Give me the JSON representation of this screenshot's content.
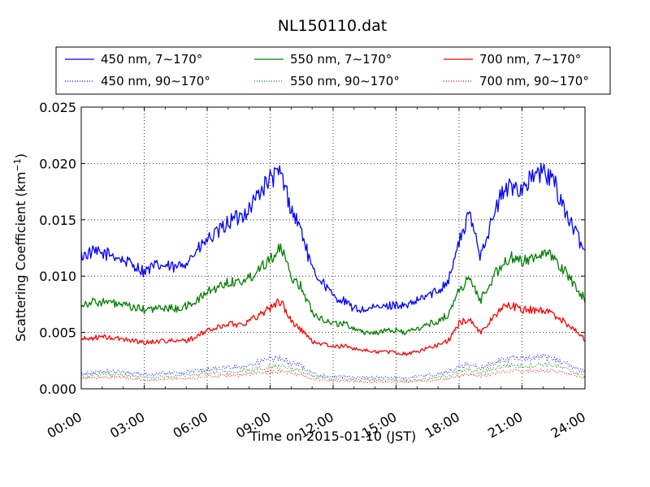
{
  "chart_data": {
    "type": "line",
    "title": "NL150110.dat",
    "xlabel": "Time on 2015-01-10 (JST)",
    "ylabel": "Scattering Coefficient (km",
    "ylabel_sup": "−1",
    "ylabel_close": ")",
    "xlim": [
      0,
      24
    ],
    "ylim": [
      0,
      0.025
    ],
    "grid": true,
    "legend_position": "top",
    "x_ticks": [
      {
        "value": 0,
        "label": "00:00"
      },
      {
        "value": 3,
        "label": "03:00"
      },
      {
        "value": 6,
        "label": "06:00"
      },
      {
        "value": 9,
        "label": "09:00"
      },
      {
        "value": 12,
        "label": "12:00"
      },
      {
        "value": 15,
        "label": "15:00"
      },
      {
        "value": 18,
        "label": "18:00"
      },
      {
        "value": 21,
        "label": "21:00"
      },
      {
        "value": 24,
        "label": "24:00"
      }
    ],
    "y_ticks": [
      {
        "value": 0.0,
        "label": "0.000"
      },
      {
        "value": 0.005,
        "label": "0.005"
      },
      {
        "value": 0.01,
        "label": "0.010"
      },
      {
        "value": 0.015,
        "label": "0.015"
      },
      {
        "value": 0.02,
        "label": "0.020"
      },
      {
        "value": 0.025,
        "label": "0.025"
      }
    ],
    "x": [
      0,
      0.5,
      1,
      1.5,
      2,
      2.5,
      3,
      3.5,
      4,
      4.5,
      5,
      5.5,
      6,
      6.5,
      7,
      7.5,
      8,
      8.5,
      9,
      9.5,
      10,
      10.5,
      11,
      11.5,
      12,
      12.5,
      13,
      13.5,
      14,
      14.5,
      15,
      15.5,
      16,
      16.5,
      17,
      17.5,
      18,
      18.5,
      19,
      19.5,
      20,
      20.5,
      21,
      21.5,
      22,
      22.5,
      23,
      23.5,
      24
    ],
    "series": [
      {
        "name": "450 nm, 7∼170°",
        "color": "#0000ff",
        "style": "solid",
        "values": [
          0.0118,
          0.0121,
          0.012,
          0.0119,
          0.0114,
          0.011,
          0.0104,
          0.0109,
          0.0109,
          0.0107,
          0.0113,
          0.0122,
          0.0132,
          0.0138,
          0.0148,
          0.0152,
          0.016,
          0.0175,
          0.0186,
          0.0192,
          0.016,
          0.014,
          0.0105,
          0.0095,
          0.0082,
          0.0078,
          0.0071,
          0.007,
          0.0072,
          0.0073,
          0.0075,
          0.0073,
          0.0078,
          0.0083,
          0.0087,
          0.0097,
          0.013,
          0.0155,
          0.012,
          0.0145,
          0.0172,
          0.018,
          0.0178,
          0.0188,
          0.0192,
          0.0185,
          0.016,
          0.014,
          0.0122
        ]
      },
      {
        "name": "550 nm, 7∼170°",
        "color": "#008000",
        "style": "solid",
        "values": [
          0.0075,
          0.0077,
          0.0077,
          0.0076,
          0.0074,
          0.0072,
          0.007,
          0.0071,
          0.0072,
          0.0071,
          0.0073,
          0.0078,
          0.0086,
          0.009,
          0.0095,
          0.0095,
          0.0098,
          0.0108,
          0.0116,
          0.0125,
          0.01,
          0.009,
          0.0068,
          0.0062,
          0.0058,
          0.0058,
          0.0054,
          0.005,
          0.005,
          0.0051,
          0.0052,
          0.005,
          0.0053,
          0.0057,
          0.006,
          0.0066,
          0.0088,
          0.0098,
          0.0078,
          0.0095,
          0.011,
          0.0116,
          0.0112,
          0.0118,
          0.012,
          0.0116,
          0.0105,
          0.0092,
          0.008
        ]
      },
      {
        "name": "700 nm, 7∼170°",
        "color": "#ff0000",
        "style": "solid",
        "values": [
          0.0044,
          0.0045,
          0.0046,
          0.0045,
          0.0044,
          0.0043,
          0.0041,
          0.0042,
          0.0043,
          0.0042,
          0.0043,
          0.0046,
          0.0052,
          0.0054,
          0.0058,
          0.0057,
          0.006,
          0.0066,
          0.0072,
          0.0078,
          0.006,
          0.0052,
          0.0042,
          0.004,
          0.0037,
          0.0038,
          0.0036,
          0.0034,
          0.0033,
          0.0033,
          0.0032,
          0.0031,
          0.0033,
          0.0036,
          0.0039,
          0.0043,
          0.0058,
          0.0062,
          0.005,
          0.006,
          0.0072,
          0.0074,
          0.007,
          0.007,
          0.007,
          0.0066,
          0.006,
          0.0052,
          0.0044
        ]
      },
      {
        "name": "450 nm, 90∼170°",
        "color": "#0000ff",
        "style": "dotted",
        "values": [
          0.0013,
          0.0014,
          0.0016,
          0.0015,
          0.0015,
          0.0014,
          0.0013,
          0.0013,
          0.0014,
          0.0014,
          0.0015,
          0.0016,
          0.0017,
          0.0018,
          0.0019,
          0.0019,
          0.0021,
          0.0024,
          0.0026,
          0.0027,
          0.0023,
          0.002,
          0.0014,
          0.0012,
          0.0011,
          0.0011,
          0.001,
          0.001,
          0.001,
          0.001,
          0.001,
          0.0009,
          0.0011,
          0.0012,
          0.0013,
          0.0015,
          0.0019,
          0.0022,
          0.0018,
          0.0022,
          0.0026,
          0.0027,
          0.0026,
          0.0027,
          0.0028,
          0.0027,
          0.0023,
          0.0019,
          0.0015
        ]
      },
      {
        "name": "550 nm, 90∼170°",
        "color": "#008000",
        "style": "dotted",
        "values": [
          0.0011,
          0.0012,
          0.0013,
          0.0012,
          0.0012,
          0.0011,
          0.001,
          0.001,
          0.0011,
          0.0011,
          0.0012,
          0.0013,
          0.0014,
          0.0014,
          0.0015,
          0.0015,
          0.0016,
          0.0018,
          0.002,
          0.0021,
          0.0018,
          0.0015,
          0.0011,
          0.001,
          0.0009,
          0.0009,
          0.0008,
          0.0008,
          0.0008,
          0.0008,
          0.0008,
          0.0007,
          0.0008,
          0.0009,
          0.001,
          0.0012,
          0.0015,
          0.0017,
          0.0014,
          0.0017,
          0.002,
          0.0021,
          0.002,
          0.0021,
          0.0022,
          0.0021,
          0.0018,
          0.0015,
          0.0012
        ]
      },
      {
        "name": "700 nm, 90∼170°",
        "color": "#ff0000",
        "style": "dotted",
        "values": [
          0.0009,
          0.001,
          0.001,
          0.001,
          0.001,
          0.0009,
          0.0008,
          0.0008,
          0.0009,
          0.0009,
          0.0009,
          0.001,
          0.0011,
          0.0011,
          0.0012,
          0.0012,
          0.0013,
          0.0014,
          0.0015,
          0.0016,
          0.0014,
          0.0012,
          0.0009,
          0.0008,
          0.0007,
          0.0007,
          0.0007,
          0.0006,
          0.0006,
          0.0006,
          0.0006,
          0.0006,
          0.0007,
          0.0007,
          0.0008,
          0.0009,
          0.0012,
          0.0013,
          0.0011,
          0.0013,
          0.0015,
          0.0016,
          0.0015,
          0.0016,
          0.0016,
          0.0016,
          0.0014,
          0.0012,
          0.001
        ]
      }
    ]
  }
}
